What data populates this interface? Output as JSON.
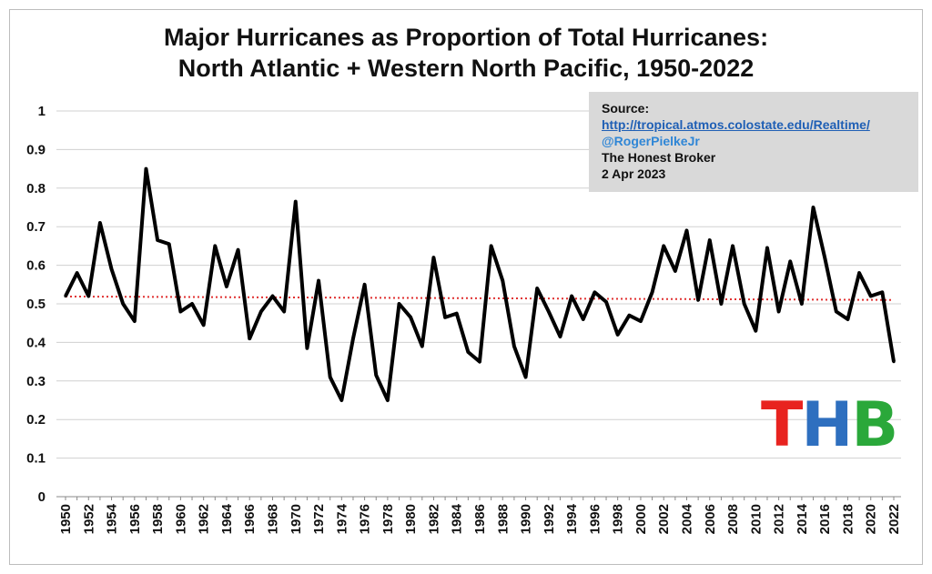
{
  "title_line1": "Major Hurricanes as Proportion of Total Hurricanes:",
  "title_line2": "North Atlantic + Western North Pacific, 1950-2022",
  "source": {
    "label": "Source:",
    "link": "http://tropical.atmos.colostate.edu/Realtime/",
    "handle": "@RogerPielkeJr",
    "publisher": "The Honest Broker",
    "date": "2 Apr 2023"
  },
  "logo": {
    "letters": [
      {
        "char": "T",
        "color": "#e8231f"
      },
      {
        "char": "H",
        "color": "#2e6fbf"
      },
      {
        "char": "B",
        "color": "#2aa83a"
      }
    ]
  },
  "colors": {
    "line": "#000000",
    "mean_line": "#e03030",
    "grid": "#d0d0d0"
  },
  "chart_data": {
    "type": "line",
    "title": "Major Hurricanes as Proportion of Total Hurricanes: North Atlantic + Western North Pacific, 1950-2022",
    "xlabel": "",
    "ylabel": "",
    "ylim": [
      0,
      1
    ],
    "yticks": [
      0,
      0.1,
      0.2,
      0.3,
      0.4,
      0.5,
      0.6,
      0.7,
      0.8,
      0.9,
      1
    ],
    "ytick_labels": [
      "0",
      "0.1",
      "0.2",
      "0.3",
      "0.4",
      "0.5",
      "0.6",
      "0.7",
      "0.8",
      "0.9",
      "1"
    ],
    "grid": true,
    "x_tick_step": 2,
    "x": [
      1950,
      1951,
      1952,
      1953,
      1954,
      1955,
      1956,
      1957,
      1958,
      1959,
      1960,
      1961,
      1962,
      1963,
      1964,
      1965,
      1966,
      1967,
      1968,
      1969,
      1970,
      1971,
      1972,
      1973,
      1974,
      1975,
      1976,
      1977,
      1978,
      1979,
      1980,
      1981,
      1982,
      1983,
      1984,
      1985,
      1986,
      1987,
      1988,
      1989,
      1990,
      1991,
      1992,
      1993,
      1994,
      1995,
      1996,
      1997,
      1998,
      1999,
      2000,
      2001,
      2002,
      2003,
      2004,
      2005,
      2006,
      2007,
      2008,
      2009,
      2010,
      2011,
      2012,
      2013,
      2014,
      2015,
      2016,
      2017,
      2018,
      2019,
      2020,
      2021,
      2022
    ],
    "values": [
      0.52,
      0.58,
      0.52,
      0.71,
      0.59,
      0.5,
      0.455,
      0.85,
      0.665,
      0.655,
      0.48,
      0.5,
      0.445,
      0.65,
      0.545,
      0.64,
      0.41,
      0.48,
      0.52,
      0.48,
      0.765,
      0.385,
      0.56,
      0.31,
      0.25,
      0.41,
      0.55,
      0.315,
      0.25,
      0.5,
      0.465,
      0.39,
      0.62,
      0.465,
      0.475,
      0.375,
      0.35,
      0.65,
      0.56,
      0.39,
      0.31,
      0.54,
      0.48,
      0.415,
      0.52,
      0.46,
      0.53,
      0.505,
      0.42,
      0.47,
      0.455,
      0.53,
      0.65,
      0.585,
      0.69,
      0.51,
      0.665,
      0.5,
      0.65,
      0.5,
      0.43,
      0.645,
      0.48,
      0.61,
      0.5,
      0.75,
      0.62,
      0.48,
      0.46,
      0.58,
      0.52,
      0.53,
      0.35
    ],
    "trend": {
      "style": "dotted",
      "start": 0.519,
      "end": 0.51
    }
  }
}
